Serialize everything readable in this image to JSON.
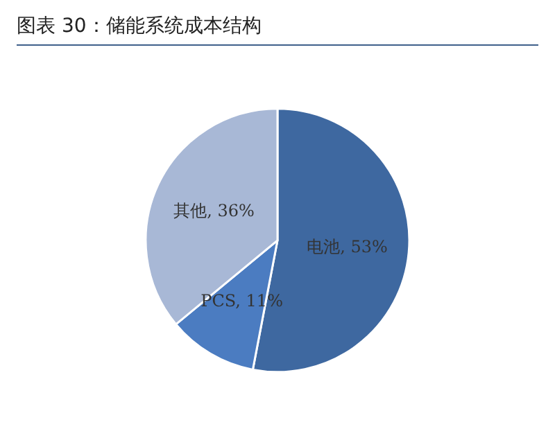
{
  "chart_data": {
    "type": "pie",
    "title": "图表 30：储能系统成本结构",
    "categories": [
      "电池",
      "PCS",
      "其他"
    ],
    "values": [
      53,
      11,
      36
    ],
    "colors": [
      "#3e68a0",
      "#4b7cc1",
      "#a8b8d6"
    ],
    "value_labels": [
      "53%",
      "11%",
      "36%"
    ],
    "legend": false
  }
}
